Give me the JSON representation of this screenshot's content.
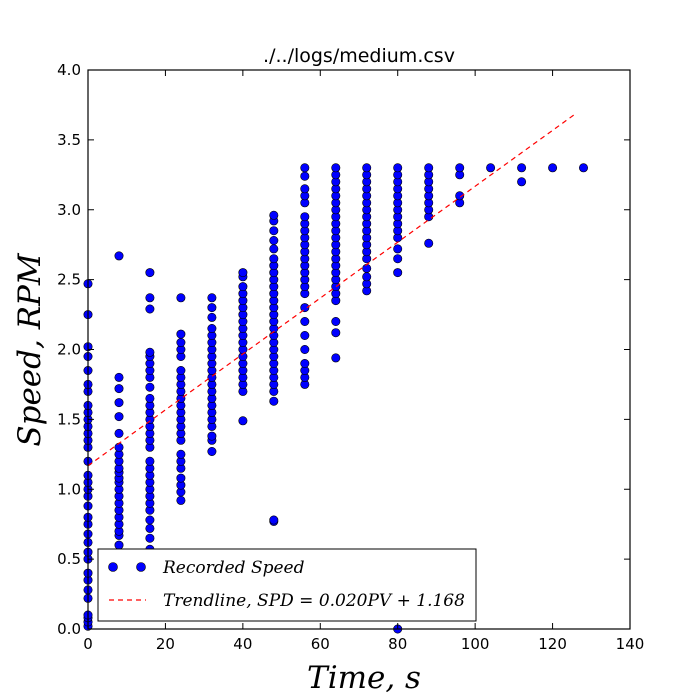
{
  "chart_data": {
    "type": "scatter",
    "title": "./../logs/medium.csv",
    "xlabel": "Time,  s",
    "ylabel": "Speed,  RPM",
    "xlim": [
      0,
      140
    ],
    "ylim": [
      0.0,
      4.0
    ],
    "xticks": [
      "0",
      "20",
      "40",
      "60",
      "80",
      "100",
      "120",
      "140"
    ],
    "yticks": [
      "0.0",
      "0.5",
      "1.0",
      "1.5",
      "2.0",
      "2.5",
      "3.0",
      "3.5",
      "4.0"
    ],
    "grid": false,
    "legend_position": "lower-left",
    "series": [
      {
        "name": "Recorded Speed",
        "marker": "circle",
        "color": "#0000ff",
        "points": [
          [
            0,
            0.02
          ],
          [
            0,
            0.05
          ],
          [
            0,
            0.08
          ],
          [
            0,
            0.1
          ],
          [
            0,
            0.22
          ],
          [
            0,
            0.28
          ],
          [
            0,
            0.35
          ],
          [
            0,
            0.4
          ],
          [
            0,
            0.5
          ],
          [
            0,
            0.55
          ],
          [
            0,
            0.62
          ],
          [
            0,
            0.68
          ],
          [
            0,
            0.75
          ],
          [
            0,
            0.8
          ],
          [
            0,
            0.88
          ],
          [
            0,
            0.95
          ],
          [
            0,
            1.0
          ],
          [
            0,
            1.05
          ],
          [
            0,
            1.1
          ],
          [
            0,
            1.2
          ],
          [
            0,
            1.3
          ],
          [
            0,
            1.35
          ],
          [
            0,
            1.4
          ],
          [
            0,
            1.45
          ],
          [
            0,
            1.5
          ],
          [
            0,
            1.55
          ],
          [
            0,
            1.6
          ],
          [
            0,
            1.7
          ],
          [
            0,
            1.75
          ],
          [
            0,
            1.85
          ],
          [
            0,
            1.95
          ],
          [
            0,
            2.02
          ],
          [
            0,
            2.25
          ],
          [
            0,
            2.47
          ],
          [
            8,
            0.5
          ],
          [
            8,
            0.55
          ],
          [
            8,
            0.6
          ],
          [
            8,
            0.67
          ],
          [
            8,
            0.7
          ],
          [
            8,
            0.75
          ],
          [
            8,
            0.8
          ],
          [
            8,
            0.85
          ],
          [
            8,
            0.9
          ],
          [
            8,
            0.95
          ],
          [
            8,
            1.0
          ],
          [
            8,
            1.05
          ],
          [
            8,
            1.08
          ],
          [
            8,
            1.12
          ],
          [
            8,
            1.15
          ],
          [
            8,
            1.2
          ],
          [
            8,
            1.25
          ],
          [
            8,
            1.3
          ],
          [
            8,
            1.4
          ],
          [
            8,
            1.52
          ],
          [
            8,
            1.62
          ],
          [
            8,
            1.72
          ],
          [
            8,
            1.8
          ],
          [
            8,
            2.67
          ],
          [
            16,
            0.57
          ],
          [
            16,
            0.65
          ],
          [
            16,
            0.72
          ],
          [
            16,
            0.78
          ],
          [
            16,
            0.85
          ],
          [
            16,
            0.9
          ],
          [
            16,
            0.95
          ],
          [
            16,
            1.0
          ],
          [
            16,
            1.05
          ],
          [
            16,
            1.1
          ],
          [
            16,
            1.15
          ],
          [
            16,
            1.2
          ],
          [
            16,
            1.3
          ],
          [
            16,
            1.35
          ],
          [
            16,
            1.4
          ],
          [
            16,
            1.45
          ],
          [
            16,
            1.5
          ],
          [
            16,
            1.55
          ],
          [
            16,
            1.6
          ],
          [
            16,
            1.65
          ],
          [
            16,
            1.73
          ],
          [
            16,
            1.8
          ],
          [
            16,
            1.85
          ],
          [
            16,
            1.9
          ],
          [
            16,
            1.95
          ],
          [
            16,
            1.98
          ],
          [
            16,
            2.29
          ],
          [
            16,
            2.37
          ],
          [
            16,
            2.55
          ],
          [
            24,
            0.92
          ],
          [
            24,
            0.98
          ],
          [
            24,
            1.03
          ],
          [
            24,
            1.08
          ],
          [
            24,
            1.15
          ],
          [
            24,
            1.2
          ],
          [
            24,
            1.25
          ],
          [
            24,
            1.35
          ],
          [
            24,
            1.4
          ],
          [
            24,
            1.45
          ],
          [
            24,
            1.5
          ],
          [
            24,
            1.55
          ],
          [
            24,
            1.6
          ],
          [
            24,
            1.65
          ],
          [
            24,
            1.7
          ],
          [
            24,
            1.75
          ],
          [
            24,
            1.8
          ],
          [
            24,
            1.85
          ],
          [
            24,
            1.95
          ],
          [
            24,
            2.0
          ],
          [
            24,
            2.05
          ],
          [
            24,
            2.11
          ],
          [
            24,
            2.37
          ],
          [
            32,
            1.27
          ],
          [
            32,
            1.35
          ],
          [
            32,
            1.38
          ],
          [
            32,
            1.45
          ],
          [
            32,
            1.5
          ],
          [
            32,
            1.55
          ],
          [
            32,
            1.6
          ],
          [
            32,
            1.65
          ],
          [
            32,
            1.7
          ],
          [
            32,
            1.75
          ],
          [
            32,
            1.8
          ],
          [
            32,
            1.85
          ],
          [
            32,
            1.9
          ],
          [
            32,
            1.95
          ],
          [
            32,
            2.0
          ],
          [
            32,
            2.05
          ],
          [
            32,
            2.1
          ],
          [
            32,
            2.15
          ],
          [
            32,
            2.23
          ],
          [
            32,
            2.3
          ],
          [
            32,
            2.37
          ],
          [
            40,
            1.49
          ],
          [
            40,
            1.7
          ],
          [
            40,
            1.75
          ],
          [
            40,
            1.8
          ],
          [
            40,
            1.85
          ],
          [
            40,
            1.9
          ],
          [
            40,
            1.95
          ],
          [
            40,
            2.0
          ],
          [
            40,
            2.05
          ],
          [
            40,
            2.1
          ],
          [
            40,
            2.15
          ],
          [
            40,
            2.2
          ],
          [
            40,
            2.25
          ],
          [
            40,
            2.3
          ],
          [
            40,
            2.35
          ],
          [
            40,
            2.4
          ],
          [
            40,
            2.45
          ],
          [
            40,
            2.52
          ],
          [
            40,
            2.55
          ],
          [
            48,
            0.77
          ],
          [
            48,
            0.78
          ],
          [
            48,
            1.63
          ],
          [
            48,
            1.7
          ],
          [
            48,
            1.75
          ],
          [
            48,
            1.8
          ],
          [
            48,
            1.85
          ],
          [
            48,
            1.9
          ],
          [
            48,
            1.95
          ],
          [
            48,
            2.0
          ],
          [
            48,
            2.05
          ],
          [
            48,
            2.1
          ],
          [
            48,
            2.15
          ],
          [
            48,
            2.2
          ],
          [
            48,
            2.25
          ],
          [
            48,
            2.3
          ],
          [
            48,
            2.35
          ],
          [
            48,
            2.4
          ],
          [
            48,
            2.45
          ],
          [
            48,
            2.5
          ],
          [
            48,
            2.55
          ],
          [
            48,
            2.6
          ],
          [
            48,
            2.65
          ],
          [
            48,
            2.72
          ],
          [
            48,
            2.78
          ],
          [
            48,
            2.85
          ],
          [
            48,
            2.92
          ],
          [
            48,
            2.96
          ],
          [
            56,
            1.75
          ],
          [
            56,
            1.8
          ],
          [
            56,
            1.85
          ],
          [
            56,
            1.9
          ],
          [
            56,
            2.0
          ],
          [
            56,
            2.1
          ],
          [
            56,
            2.2
          ],
          [
            56,
            2.3
          ],
          [
            56,
            2.4
          ],
          [
            56,
            2.45
          ],
          [
            56,
            2.5
          ],
          [
            56,
            2.55
          ],
          [
            56,
            2.6
          ],
          [
            56,
            2.65
          ],
          [
            56,
            2.7
          ],
          [
            56,
            2.75
          ],
          [
            56,
            2.8
          ],
          [
            56,
            2.85
          ],
          [
            56,
            2.9
          ],
          [
            56,
            2.95
          ],
          [
            56,
            3.05
          ],
          [
            56,
            3.1
          ],
          [
            56,
            3.15
          ],
          [
            56,
            3.24
          ],
          [
            56,
            3.3
          ],
          [
            64,
            1.94
          ],
          [
            64,
            2.12
          ],
          [
            64,
            2.2
          ],
          [
            64,
            2.35
          ],
          [
            64,
            2.4
          ],
          [
            64,
            2.45
          ],
          [
            64,
            2.5
          ],
          [
            64,
            2.55
          ],
          [
            64,
            2.6
          ],
          [
            64,
            2.65
          ],
          [
            64,
            2.7
          ],
          [
            64,
            2.75
          ],
          [
            64,
            2.8
          ],
          [
            64,
            2.85
          ],
          [
            64,
            2.9
          ],
          [
            64,
            2.95
          ],
          [
            64,
            3.0
          ],
          [
            64,
            3.05
          ],
          [
            64,
            3.1
          ],
          [
            64,
            3.15
          ],
          [
            64,
            3.2
          ],
          [
            64,
            3.25
          ],
          [
            64,
            3.3
          ],
          [
            72,
            2.42
          ],
          [
            72,
            2.47
          ],
          [
            72,
            2.52
          ],
          [
            72,
            2.58
          ],
          [
            72,
            2.65
          ],
          [
            72,
            2.7
          ],
          [
            72,
            2.75
          ],
          [
            72,
            2.8
          ],
          [
            72,
            2.85
          ],
          [
            72,
            2.9
          ],
          [
            72,
            2.95
          ],
          [
            72,
            3.0
          ],
          [
            72,
            3.05
          ],
          [
            72,
            3.1
          ],
          [
            72,
            3.15
          ],
          [
            72,
            3.2
          ],
          [
            72,
            3.25
          ],
          [
            72,
            3.3
          ],
          [
            80,
            0.0
          ],
          [
            80,
            2.55
          ],
          [
            80,
            2.65
          ],
          [
            80,
            2.72
          ],
          [
            80,
            2.8
          ],
          [
            80,
            2.85
          ],
          [
            80,
            2.9
          ],
          [
            80,
            2.95
          ],
          [
            80,
            3.0
          ],
          [
            80,
            3.05
          ],
          [
            80,
            3.1
          ],
          [
            80,
            3.15
          ],
          [
            80,
            3.2
          ],
          [
            80,
            3.25
          ],
          [
            80,
            3.3
          ],
          [
            88,
            2.76
          ],
          [
            88,
            2.95
          ],
          [
            88,
            3.0
          ],
          [
            88,
            3.05
          ],
          [
            88,
            3.1
          ],
          [
            88,
            3.15
          ],
          [
            88,
            3.2
          ],
          [
            88,
            3.25
          ],
          [
            88,
            3.3
          ],
          [
            96,
            3.05
          ],
          [
            96,
            3.1
          ],
          [
            96,
            3.25
          ],
          [
            96,
            3.3
          ],
          [
            104,
            3.3
          ],
          [
            112,
            3.2
          ],
          [
            112,
            3.3
          ],
          [
            120,
            3.3
          ],
          [
            128,
            3.3
          ]
        ]
      },
      {
        "name": "Trendline, SPD = 0.020PV + 1.168",
        "style": "dashed",
        "color": "#ff0000",
        "slope": 0.02,
        "intercept": 1.168,
        "x_range": [
          0,
          126
        ]
      }
    ],
    "legend": {
      "scatter_label": "Recorded Speed",
      "trend_label": "Trendline, SPD = 0.020PV + 1.168"
    }
  }
}
